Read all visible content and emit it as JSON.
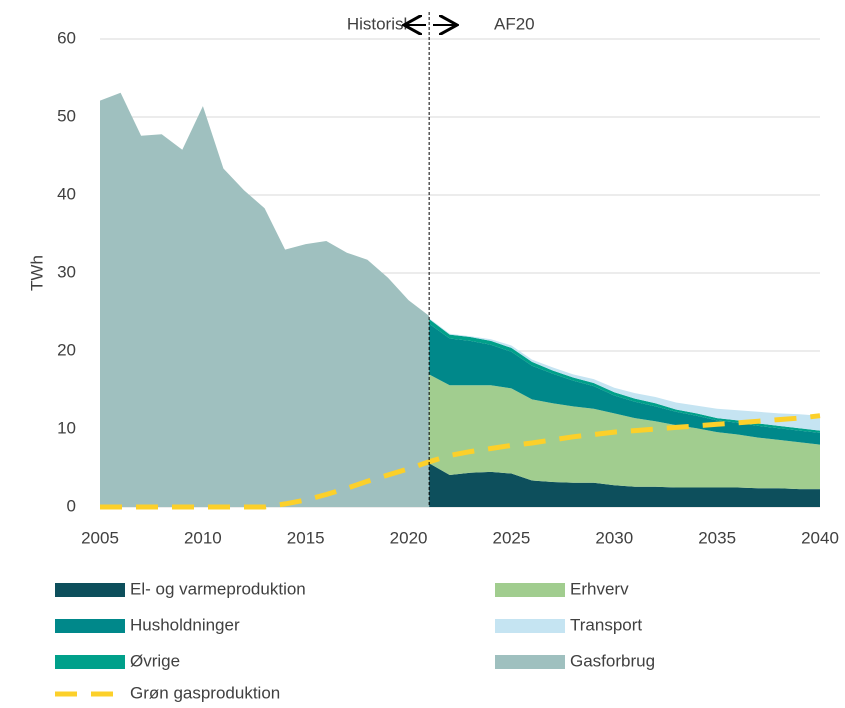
{
  "chart_data": {
    "type": "area",
    "y_label": "TWh",
    "annotations": [
      "Historisk",
      "AF20"
    ],
    "x": [
      2005,
      2006,
      2007,
      2008,
      2009,
      2010,
      2011,
      2012,
      2013,
      2014,
      2015,
      2016,
      2017,
      2018,
      2019,
      2020,
      2021,
      2022,
      2023,
      2024,
      2025,
      2026,
      2027,
      2028,
      2029,
      2030,
      2031,
      2032,
      2033,
      2034,
      2035,
      2036,
      2037,
      2038,
      2039,
      2040
    ],
    "xlim": [
      2005,
      2040
    ],
    "xticks": [
      2005,
      2010,
      2015,
      2020,
      2025,
      2030,
      2035,
      2040
    ],
    "ylim": [
      0,
      60
    ],
    "yticks": [
      0,
      10,
      20,
      30,
      40,
      50,
      60
    ],
    "grid": true,
    "series": [
      {
        "name": "El- og varmeproduktion",
        "color": "#0d4f5c",
        "stacked": true,
        "values": [
          null,
          null,
          null,
          null,
          null,
          null,
          null,
          null,
          null,
          null,
          null,
          null,
          null,
          null,
          null,
          null,
          5.6,
          4.1,
          4.4,
          4.5,
          4.3,
          3.4,
          3.2,
          3.1,
          3.1,
          2.8,
          2.6,
          2.6,
          2.5,
          2.5,
          2.5,
          2.5,
          2.4,
          2.4,
          2.3,
          2.3
        ]
      },
      {
        "name": "Erhverv",
        "color": "#a1cd8f",
        "stacked": true,
        "values": [
          null,
          null,
          null,
          null,
          null,
          null,
          null,
          null,
          null,
          null,
          null,
          null,
          null,
          null,
          null,
          null,
          11.4,
          11.5,
          11.2,
          11.1,
          10.9,
          10.4,
          10.1,
          9.8,
          9.5,
          9.2,
          8.8,
          8.4,
          8.0,
          7.6,
          7.1,
          6.8,
          6.5,
          6.2,
          6.0,
          5.7
        ]
      },
      {
        "name": "Husholdninger",
        "color": "#00888a",
        "stacked": true,
        "values": [
          null,
          null,
          null,
          null,
          null,
          null,
          null,
          null,
          null,
          null,
          null,
          null,
          null,
          null,
          null,
          null,
          6.5,
          6.0,
          5.7,
          5.2,
          4.7,
          4.3,
          3.8,
          3.3,
          2.9,
          2.3,
          2.1,
          1.9,
          1.7,
          1.6,
          1.5,
          1.5,
          1.5,
          1.5,
          1.5,
          1.5
        ]
      },
      {
        "name": "Øvrige",
        "color": "#00a08a",
        "stacked": true,
        "values": [
          null,
          null,
          null,
          null,
          null,
          null,
          null,
          null,
          null,
          null,
          null,
          null,
          null,
          null,
          null,
          null,
          0.6,
          0.5,
          0.5,
          0.5,
          0.5,
          0.5,
          0.4,
          0.4,
          0.4,
          0.4,
          0.4,
          0.4,
          0.3,
          0.3,
          0.3,
          0.3,
          0.3,
          0.3,
          0.3,
          0.3
        ]
      },
      {
        "name": "Transport",
        "color": "#c5e4f2",
        "stacked": true,
        "values": [
          null,
          null,
          null,
          null,
          null,
          null,
          null,
          null,
          null,
          null,
          null,
          null,
          null,
          null,
          null,
          null,
          0.1,
          0.1,
          0.1,
          0.2,
          0.3,
          0.3,
          0.4,
          0.4,
          0.5,
          0.6,
          0.7,
          0.8,
          0.9,
          1.0,
          1.2,
          1.3,
          1.5,
          1.6,
          1.8,
          1.9
        ]
      },
      {
        "name": "Gasforbrug",
        "color": "#9fc0bf",
        "stacked": false,
        "values": [
          52.1,
          53.1,
          47.6,
          47.8,
          45.8,
          51.4,
          43.4,
          40.6,
          38.3,
          33.0,
          33.7,
          34.1,
          32.6,
          31.7,
          29.4,
          26.5,
          24.5,
          null,
          null,
          null,
          null,
          null,
          null,
          null,
          null,
          null,
          null,
          null,
          null,
          null,
          null,
          null,
          null,
          null,
          null,
          null
        ]
      },
      {
        "name": "Grøn gasproduktion",
        "color": "#fcd02a",
        "line": true,
        "dashed": true,
        "values": [
          0,
          0,
          0,
          0,
          0,
          0,
          0,
          0,
          0,
          0.4,
          0.9,
          1.6,
          2.4,
          3.3,
          4.1,
          4.9,
          5.8,
          6.6,
          7.1,
          7.5,
          7.9,
          8.2,
          8.6,
          9.0,
          9.3,
          9.6,
          9.8,
          10.0,
          10.2,
          10.4,
          10.6,
          10.8,
          11.0,
          11.2,
          11.4,
          11.7
        ]
      }
    ]
  }
}
